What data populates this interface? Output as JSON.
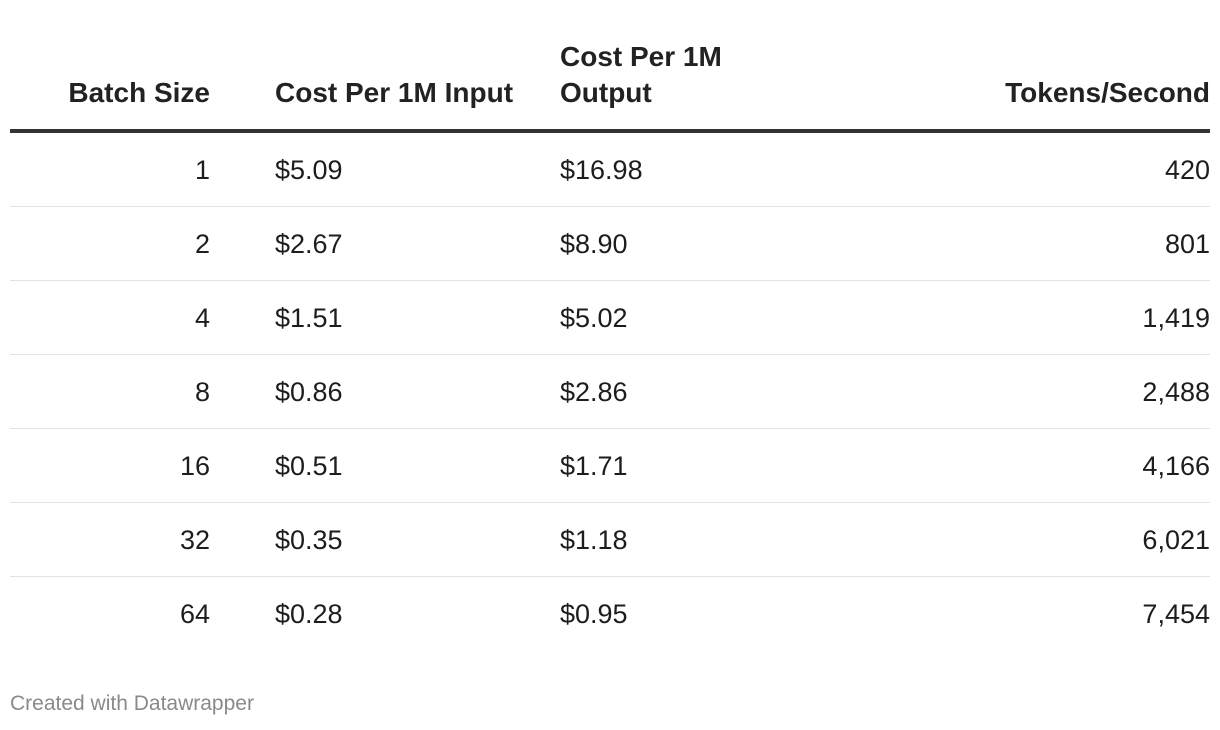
{
  "chart_data": {
    "type": "table",
    "columns": [
      "Batch Size",
      "Cost Per 1M Input",
      "Cost Per 1M Output",
      "Tokens/Second"
    ],
    "rows": [
      [
        "1",
        "$5.09",
        "$16.98",
        "420"
      ],
      [
        "2",
        "$2.67",
        "$8.90",
        "801"
      ],
      [
        "4",
        "$1.51",
        "$5.02",
        "1,419"
      ],
      [
        "8",
        "$0.86",
        "$2.86",
        "2,488"
      ],
      [
        "16",
        "$0.51",
        "$1.71",
        "4,166"
      ],
      [
        "32",
        "$0.35",
        "$1.18",
        "6,021"
      ],
      [
        "64",
        "$0.28",
        "$0.95",
        "7,454"
      ]
    ]
  },
  "footer": {
    "credit": "Created with Datawrapper"
  }
}
